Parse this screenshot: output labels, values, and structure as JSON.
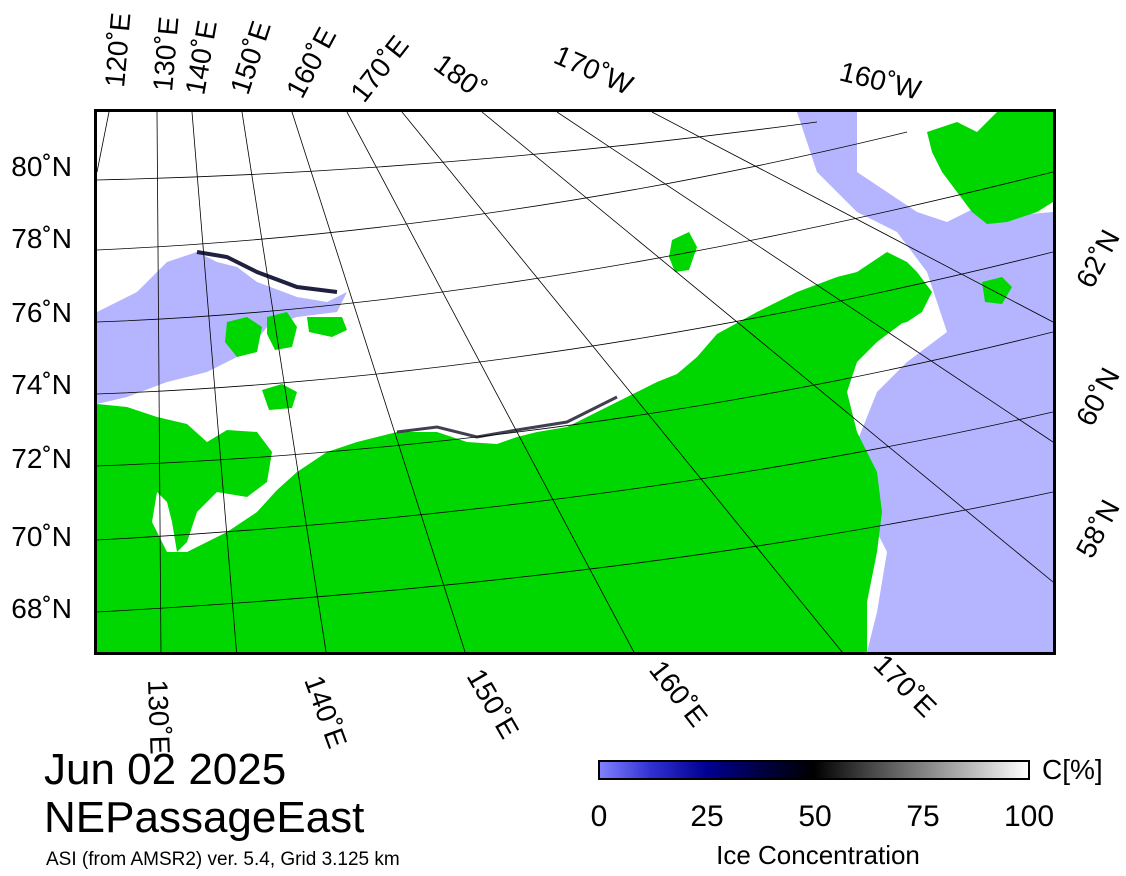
{
  "date": "Jun 02 2025",
  "region": "NEPassageEast",
  "credit": "ASI (from AMSR2) ver. 5.4,  Grid 3.125 km",
  "colors": {
    "land": "#00d600",
    "open_water": "#b4b4ff",
    "ice_full": "#ffffff",
    "frame": "#000000"
  },
  "graticule": {
    "top_lon_labels": [
      "120˚E",
      "130˚E",
      "140˚E",
      "150˚E",
      "160˚E",
      "170˚E",
      "180˚",
      "170˚W",
      "160˚W"
    ],
    "left_lat_labels": [
      "80˚N",
      "78˚N",
      "76˚N",
      "74˚N",
      "72˚N",
      "70˚N",
      "68˚N"
    ],
    "right_lat_labels": [
      "62˚N",
      "60˚N",
      "58˚N"
    ],
    "bottom_lon_labels": [
      "130˚E",
      "140˚E",
      "150˚E",
      "160˚E",
      "170˚E"
    ]
  },
  "colorbar": {
    "unit": "C[%]",
    "ticks": [
      "0",
      "25",
      "50",
      "75",
      "100"
    ],
    "title": "Ice Concentration",
    "range": [
      0,
      100
    ]
  }
}
